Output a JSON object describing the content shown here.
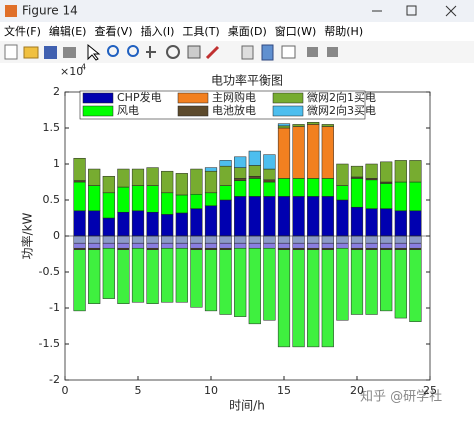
{
  "window": {
    "title": "Figure 14",
    "menu": [
      "文件(F)",
      "编辑(E)",
      "查看(V)",
      "插入(I)",
      "工具(T)",
      "桌面(D)",
      "窗口(W)",
      "帮助(H)"
    ],
    "watermark": "知乎 @研学社"
  },
  "chart_data": {
    "type": "stacked_bar",
    "title": "电功率平衡图",
    "xlabel": "时间/h",
    "ylabel": "功率/kW",
    "y_exponent_base": "×10",
    "y_exponent_power": "4",
    "x": [
      1,
      2,
      3,
      4,
      5,
      6,
      7,
      8,
      9,
      10,
      11,
      12,
      13,
      14,
      15,
      16,
      17,
      18,
      19,
      20,
      21,
      22,
      23,
      24
    ],
    "xlim": [
      0,
      25
    ],
    "xticks": [
      0,
      5,
      10,
      15,
      20,
      25
    ],
    "ylim": [
      -2,
      2
    ],
    "yticks": [
      -2,
      -1.5,
      -1,
      -0.5,
      0,
      0.5,
      1,
      1.5,
      2
    ],
    "series": [
      {
        "name": "CHP发电",
        "color": "#0000b0",
        "values": [
          0.35,
          0.35,
          0.25,
          0.33,
          0.35,
          0.33,
          0.3,
          0.32,
          0.38,
          0.42,
          0.5,
          0.55,
          0.55,
          0.55,
          0.55,
          0.55,
          0.55,
          0.55,
          0.5,
          0.4,
          0.38,
          0.38,
          0.35,
          0.35
        ]
      },
      {
        "name": "风电",
        "color": "#00ff00",
        "values": [
          0.4,
          0.35,
          0.35,
          0.35,
          0.35,
          0.37,
          0.3,
          0.25,
          0.2,
          0.18,
          0.2,
          0.22,
          0.25,
          0.2,
          0.25,
          0.25,
          0.25,
          0.25,
          0.2,
          0.4,
          0.4,
          0.35,
          0.4,
          0.4
        ]
      },
      {
        "name": "电池放电",
        "color": "#5c4a2c",
        "values": [
          0.02,
          0,
          0,
          0,
          0,
          0,
          0,
          0,
          0,
          0,
          0,
          0.03,
          0.03,
          0.03,
          0,
          0,
          0,
          0,
          0,
          0.02,
          0.02,
          0.02,
          0,
          0
        ]
      },
      {
        "name": "主网购电",
        "color": "#f28020",
        "values": [
          0,
          0,
          0,
          0,
          0,
          0,
          0,
          0,
          0,
          0,
          0,
          0,
          0,
          0,
          0.7,
          0.72,
          0.75,
          0.72,
          0,
          0,
          0,
          0,
          0,
          0
        ]
      },
      {
        "name": "微网2向1买电",
        "color": "#77ac30",
        "values": [
          0.31,
          0.23,
          0.23,
          0.25,
          0.23,
          0.25,
          0.3,
          0.3,
          0.35,
          0.3,
          0.27,
          0.15,
          0.15,
          0.15,
          0.03,
          0.03,
          0.03,
          0.03,
          0.3,
          0.15,
          0.2,
          0.28,
          0.3,
          0.3
        ]
      },
      {
        "name": "微网2向3买电",
        "color": "#4dbeee",
        "values": [
          0,
          0,
          0,
          0,
          0,
          0,
          0,
          0,
          0,
          0.05,
          0.08,
          0.15,
          0.2,
          0.2,
          0.03,
          0,
          0,
          0,
          0,
          0,
          0,
          0,
          0,
          0
        ]
      },
      {
        "color": "#8c9ac8",
        "values": [
          -0.1,
          -0.1,
          -0.1,
          -0.1,
          -0.1,
          -0.1,
          -0.1,
          -0.1,
          -0.1,
          -0.1,
          -0.1,
          -0.1,
          -0.1,
          -0.1,
          -0.1,
          -0.1,
          -0.1,
          -0.1,
          -0.1,
          -0.1,
          -0.1,
          -0.1,
          -0.1,
          -0.1
        ]
      },
      {
        "color": "#8a7ee0",
        "values": [
          -0.07,
          -0.07,
          -0.07,
          -0.07,
          -0.07,
          -0.07,
          -0.07,
          -0.07,
          -0.07,
          -0.07,
          -0.07,
          -0.07,
          -0.07,
          -0.07,
          -0.07,
          -0.07,
          -0.07,
          -0.07,
          -0.07,
          -0.07,
          -0.07,
          -0.07,
          -0.07,
          -0.07
        ]
      },
      {
        "color": "#5c4a2c",
        "values": [
          -0.02,
          -0.02,
          0,
          -0.02,
          0,
          -0.02,
          0,
          0,
          -0.02,
          -0.02,
          -0.02,
          0,
          0,
          0,
          -0.02,
          -0.02,
          -0.02,
          -0.02,
          0,
          -0.02,
          -0.02,
          -0.02,
          -0.02,
          -0.02
        ]
      },
      {
        "color": "#3ff03f",
        "values": [
          -0.85,
          -0.75,
          -0.7,
          -0.75,
          -0.75,
          -0.75,
          -0.75,
          -0.75,
          -0.8,
          -0.85,
          -0.9,
          -0.95,
          -1.05,
          -1.0,
          -1.35,
          -1.35,
          -1.35,
          -1.35,
          -1.0,
          -0.9,
          -0.9,
          -0.85,
          -0.95,
          -1.0
        ]
      }
    ]
  }
}
